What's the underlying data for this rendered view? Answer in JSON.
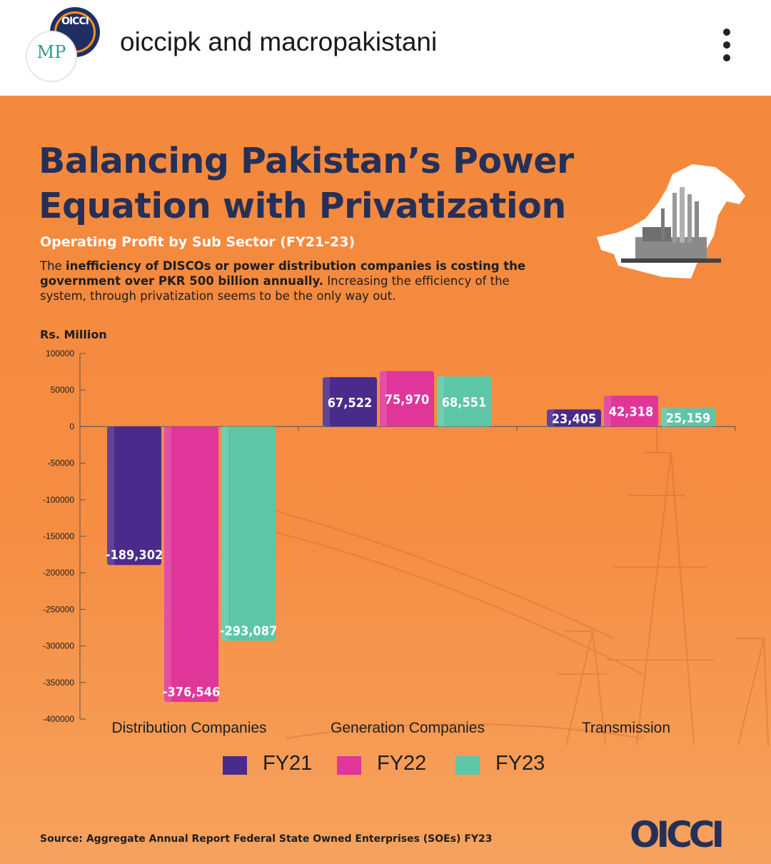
{
  "header": {
    "account_primary": "oiccipk",
    "joiner": " and ",
    "account_secondary": "macropakistani",
    "avatar_primary_text": "OICCI",
    "avatar_secondary_text": "MP",
    "more_icon": "more-vertical-icon"
  },
  "poster": {
    "title_line1": "Balancing Pakistan’s Power",
    "title_line2": "Equation with Privatization",
    "subtitle": "Operating Profit by Sub Sector (FY21-23)",
    "desc_pre": "The ",
    "desc_bold": "inefficiency of DISCOs or power distribution companies is costing the government over PKR 500 billion annually.",
    "desc_post": " Increasing the efficiency of the system, through privatization seems to be the only way out.",
    "source": "Source: Aggregate Annual Report Federal State Owned Enterprises (SOEs) FY23",
    "logo": "OICCI",
    "colors": {
      "background": "#f58d42",
      "title": "#253058",
      "subtitle": "#ffffff"
    }
  },
  "chart_data": {
    "type": "bar",
    "ylabel": "Rs. Million",
    "ylim": [
      -400000,
      100000
    ],
    "yticks": [
      100000,
      50000,
      0,
      -50000,
      -100000,
      -150000,
      -200000,
      -250000,
      -300000,
      -350000,
      -400000
    ],
    "categories": [
      "Distribution Companies",
      "Generation Companies",
      "Transmission"
    ],
    "series": [
      {
        "name": "FY21",
        "color": "#4a2b8c",
        "values": [
          -189302,
          67522,
          23405
        ],
        "labels": [
          "-189,302",
          "67,522",
          "23,405"
        ]
      },
      {
        "name": "FY22",
        "color": "#e0369a",
        "values": [
          -376546,
          75970,
          42318
        ],
        "labels": [
          "-376,546",
          "75,970",
          "42,318"
        ]
      },
      {
        "name": "FY23",
        "color": "#5cc6a6",
        "values": [
          -293087,
          68551,
          25159
        ],
        "labels": [
          "-293,087",
          "68,551",
          "25,159"
        ]
      }
    ],
    "grid": false,
    "legend": "bottom"
  }
}
